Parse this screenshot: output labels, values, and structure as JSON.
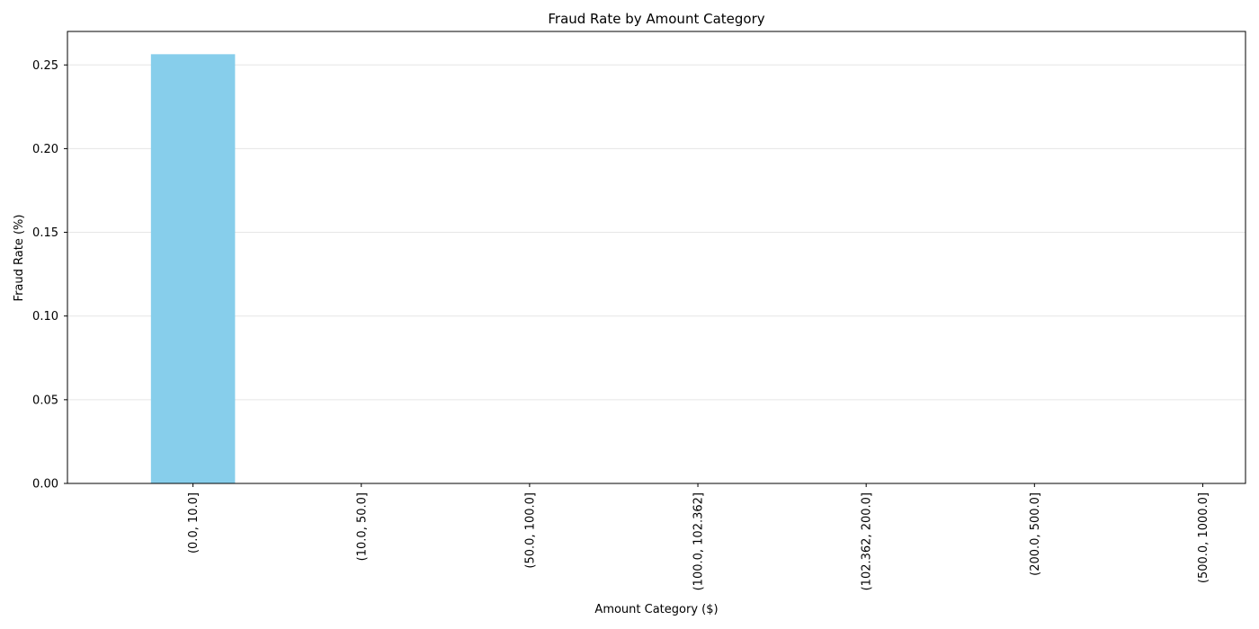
{
  "chart_data": {
    "type": "bar",
    "title": "Fraud Rate by Amount Category",
    "xlabel": "Amount Category ($)",
    "ylabel": "Fraud Rate (%)",
    "categories": [
      "(0.0, 10.0]",
      "(10.0, 50.0]",
      "(50.0, 100.0]",
      "(100.0, 102.362]",
      "(102.362, 200.0]",
      "(200.0, 500.0]",
      "(500.0, 1000.0]"
    ],
    "values": [
      0.2564,
      0,
      0,
      0,
      0,
      0,
      0
    ],
    "ylim": [
      0,
      0.27
    ],
    "yticks": [
      "0.00",
      "0.05",
      "0.10",
      "0.15",
      "0.20",
      "0.25"
    ],
    "grid": "y-axis",
    "bar_color": "#87ceeb",
    "legend": "none"
  }
}
